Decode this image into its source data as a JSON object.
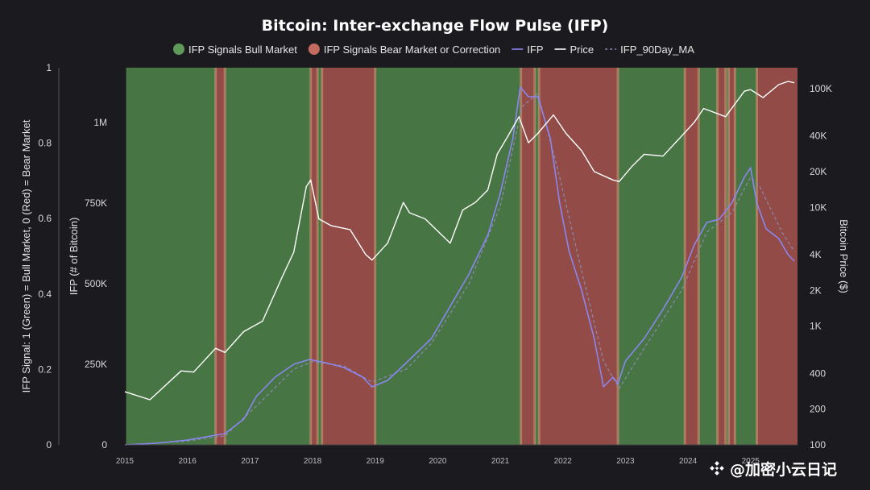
{
  "chart_data": {
    "type": "line",
    "title": "Bitcoin: Inter-exchange Flow Pulse (IFP)",
    "legend": [
      {
        "label": "IFP Signals Bull Market",
        "kind": "dot",
        "color": "#5f9a5a"
      },
      {
        "label": "IFP Signals Bear Market or Correction",
        "kind": "dot",
        "color": "#c46a5e"
      },
      {
        "label": "IFP",
        "kind": "line",
        "color": "#8b86f0"
      },
      {
        "label": "Price",
        "kind": "line",
        "color": "#ffffff"
      },
      {
        "label": "IFP_90Day_MA",
        "kind": "dash",
        "color": "#8a8ab0"
      }
    ],
    "colors": {
      "bull": "#4c7f47",
      "bear": "#a0514a",
      "ifp": "#8b86f0",
      "price": "#ffffff",
      "ma": "#8a8ab0"
    },
    "x_range": [
      2015.0,
      2025.75
    ],
    "x_ticks": [
      "2015",
      "2016",
      "2017",
      "2018",
      "2019",
      "2020",
      "2021",
      "2022",
      "2023",
      "2024",
      "2025"
    ],
    "y_left_signal": {
      "label": "IFP Signal: 1 (Green) = Bull Market, 0 (Red) = Bear Market",
      "ticks": [
        "0",
        "0.2",
        "0.4",
        "0.6",
        "0.8",
        "1"
      ],
      "range": [
        0,
        1
      ]
    },
    "y_left_ifp": {
      "label": "IFP (# of Bitcoin)",
      "ticks": [
        "0",
        "250K",
        "500K",
        "750K",
        "1M"
      ],
      "tick_values": [
        0,
        250000,
        500000,
        750000,
        1000000
      ],
      "range": [
        0,
        1170000
      ]
    },
    "y_right_price": {
      "label": "Bitcoin Price ($)",
      "scale": "log",
      "ticks": [
        "100",
        "200",
        "400",
        "1K",
        "2K",
        "4K",
        "10K",
        "20K",
        "40K",
        "100K"
      ],
      "tick_values": [
        100,
        200,
        400,
        1000,
        2000,
        4000,
        10000,
        20000,
        40000,
        100000
      ],
      "range": [
        100,
        150000
      ]
    },
    "regimes": [
      {
        "start": 2015.02,
        "end": 2016.45,
        "signal": "bull"
      },
      {
        "start": 2016.45,
        "end": 2016.6,
        "signal": "bear"
      },
      {
        "start": 2016.6,
        "end": 2017.97,
        "signal": "bull"
      },
      {
        "start": 2017.97,
        "end": 2018.08,
        "signal": "bear"
      },
      {
        "start": 2018.08,
        "end": 2018.15,
        "signal": "bull"
      },
      {
        "start": 2018.15,
        "end": 2019.0,
        "signal": "bear"
      },
      {
        "start": 2019.0,
        "end": 2021.33,
        "signal": "bull"
      },
      {
        "start": 2021.33,
        "end": 2021.55,
        "signal": "bear"
      },
      {
        "start": 2021.55,
        "end": 2021.62,
        "signal": "bull"
      },
      {
        "start": 2021.62,
        "end": 2022.88,
        "signal": "bear"
      },
      {
        "start": 2022.88,
        "end": 2023.95,
        "signal": "bull"
      },
      {
        "start": 2023.95,
        "end": 2024.17,
        "signal": "bear"
      },
      {
        "start": 2024.17,
        "end": 2024.47,
        "signal": "bull"
      },
      {
        "start": 2024.47,
        "end": 2024.6,
        "signal": "bear"
      },
      {
        "start": 2024.6,
        "end": 2024.65,
        "signal": "bull"
      },
      {
        "start": 2024.65,
        "end": 2024.75,
        "signal": "bear"
      },
      {
        "start": 2024.75,
        "end": 2025.1,
        "signal": "bull"
      },
      {
        "start": 2025.1,
        "end": 2025.75,
        "signal": "bear"
      }
    ],
    "series": [
      {
        "name": "IFP",
        "axis": "ifp",
        "x": [
          2015.0,
          2015.5,
          2016.0,
          2016.3,
          2016.6,
          2016.9,
          2017.1,
          2017.4,
          2017.7,
          2017.95,
          2018.2,
          2018.5,
          2018.8,
          2018.95,
          2019.2,
          2019.5,
          2019.9,
          2020.2,
          2020.5,
          2020.8,
          2021.0,
          2021.2,
          2021.32,
          2021.45,
          2021.6,
          2021.8,
          2021.95,
          2022.1,
          2022.3,
          2022.5,
          2022.65,
          2022.8,
          2022.88,
          2023.0,
          2023.3,
          2023.6,
          2023.9,
          2024.1,
          2024.3,
          2024.5,
          2024.7,
          2024.9,
          2025.0,
          2025.1,
          2025.25,
          2025.45,
          2025.6,
          2025.7
        ],
        "y": [
          0,
          5000,
          15000,
          25000,
          35000,
          80000,
          150000,
          210000,
          250000,
          265000,
          255000,
          240000,
          210000,
          180000,
          200000,
          255000,
          330000,
          430000,
          530000,
          650000,
          780000,
          950000,
          1110000,
          1080000,
          1080000,
          950000,
          750000,
          600000,
          480000,
          330000,
          180000,
          210000,
          190000,
          260000,
          330000,
          420000,
          520000,
          620000,
          690000,
          700000,
          750000,
          830000,
          860000,
          750000,
          670000,
          640000,
          590000,
          570000
        ]
      },
      {
        "name": "IFP_90Day_MA",
        "axis": "ifp",
        "x": [
          2015.0,
          2016.0,
          2016.6,
          2017.1,
          2017.7,
          2018.0,
          2018.5,
          2018.95,
          2019.5,
          2019.9,
          2020.5,
          2021.0,
          2021.35,
          2021.6,
          2021.95,
          2022.3,
          2022.65,
          2022.9,
          2023.3,
          2023.9,
          2024.3,
          2024.7,
          2025.0,
          2025.15,
          2025.5,
          2025.7
        ],
        "y": [
          0,
          12000,
          28000,
          120000,
          235000,
          258000,
          245000,
          195000,
          235000,
          315000,
          500000,
          740000,
          1050000,
          1090000,
          830000,
          540000,
          260000,
          175000,
          300000,
          480000,
          660000,
          720000,
          830000,
          800000,
          660000,
          600000
        ]
      },
      {
        "name": "Price",
        "axis": "price",
        "x": [
          2015.0,
          2015.4,
          2015.9,
          2016.1,
          2016.45,
          2016.6,
          2016.9,
          2017.2,
          2017.5,
          2017.7,
          2017.9,
          2017.97,
          2018.1,
          2018.3,
          2018.6,
          2018.85,
          2018.95,
          2019.2,
          2019.45,
          2019.55,
          2019.8,
          2020.2,
          2020.4,
          2020.6,
          2020.8,
          2020.95,
          2021.1,
          2021.3,
          2021.45,
          2021.6,
          2021.85,
          2022.05,
          2022.3,
          2022.5,
          2022.8,
          2022.9,
          2023.1,
          2023.3,
          2023.6,
          2023.9,
          2024.1,
          2024.25,
          2024.6,
          2024.9,
          2025.0,
          2025.2,
          2025.45,
          2025.6,
          2025.7
        ],
        "y": [
          280,
          240,
          420,
          410,
          650,
          600,
          900,
          1100,
          2500,
          4200,
          15000,
          17000,
          8000,
          7000,
          6500,
          4000,
          3600,
          5000,
          11000,
          9000,
          8000,
          5000,
          9500,
          11000,
          14000,
          28000,
          38000,
          58000,
          35000,
          42000,
          60000,
          42000,
          30000,
          20000,
          17000,
          16500,
          22000,
          28000,
          27000,
          40000,
          52000,
          68000,
          58000,
          95000,
          98000,
          84000,
          108000,
          115000,
          112000
        ]
      }
    ]
  }
}
